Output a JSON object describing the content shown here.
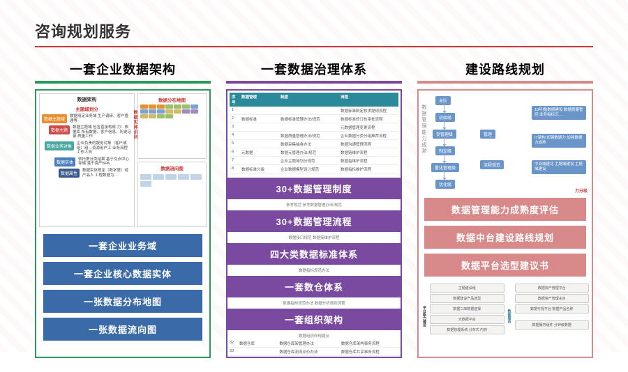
{
  "title": "咨询规划服务",
  "palette": {
    "accent_red": "#c63a3a",
    "col1": "#2a9a5a",
    "col1_bar": "#3a6aa8",
    "col2": "#7a4aa0",
    "col2_teal": "#2a8a9a",
    "col3": "#d88a8a",
    "col3_chip": "#6a95c8"
  },
  "columns": [
    {
      "heading": "一套企业数据架构",
      "diagram": {
        "title": "数据架构",
        "left_sub": "主题域划分",
        "nodes": [
          {
            "label": "数据主题域",
            "color": "#e98f2e",
            "desc": "数据用定业务域\n生产调研、客户管理等"
          },
          {
            "label": "数据主题",
            "color": "#d14a4a",
            "desc": "数据主题域 包含直接构成\n力：依据库 所有数据、客户信息、历史记录 质量工作"
          },
          {
            "label": "数据业务对象",
            "color": "#4aa7a0",
            "desc": "企业负责的服务对象（客户或组）组…资源用户工 业务流程 工作人员"
          },
          {
            "label": "数据实体",
            "color": "#4a7fbf",
            "desc": "依托携分类结果 基于交点中心存储 落干资产BPA"
          },
          {
            "label": "数据属性",
            "color": "#3a5a8a",
            "desc": "数据实体规定（数学里）经产品人 工程数据为…"
          }
        ],
        "right1_title": "数据分布地图",
        "right2_title": "数据流向图",
        "side_label": "数据实体识别"
      },
      "bars": [
        "一套企业业务域",
        "一套企业核心数据实体",
        "一张数据分布地图",
        "一张数据流向图"
      ]
    },
    {
      "heading": "一套数据治理体系",
      "table_head": [
        "序号",
        "数据管理",
        "制度",
        "流程"
      ],
      "rows": [
        [
          "1",
          "",
          "",
          "数据标准制定核求提规流程"
        ],
        [
          "2",
          "数据标准",
          "数据标准管理办法/规范",
          "数据标准修订核审批流程"
        ],
        [
          "3",
          "",
          "",
          "元数据管理变更流程"
        ],
        [
          "4",
          "",
          "数据质量管理办法/规范",
          "企业数据分类分级推荐流程"
        ],
        [
          "5",
          "",
          "数据采集抽身办法",
          "数据沟通管理流程"
        ],
        [
          "6",
          "元数据",
          "数据元管理办法/规范",
          "数据链维护流程"
        ],
        [
          "7",
          "",
          "企业主题域划分规范",
          "数据指维护流程"
        ],
        [
          "8",
          "数据标准分级",
          "企业数据模型设计规范",
          "数据指标维护流程"
        ]
      ],
      "bars": [
        "30+数据管理制度",
        "30+数据管理流程",
        "四大类数据标准体系",
        "一套数仓体系",
        "一套组织架构"
      ],
      "minis": [
        "参考规范 参考数据管理办法/规范",
        "数据接口规范 数据接维护流程",
        "数据指标规范办法",
        "数据指标规范办法 数据分析规则流程",
        "数据组织向规建议"
      ],
      "tail_rows": [
        [
          "32",
          "数据仓库",
          "数据仓库架管理办法",
          "数据仓库架构事务流程"
        ],
        [
          "33",
          "",
          "数据仓库测流评价办法",
          "数据仓库共享事务流程"
        ],
        [
          "34",
          "数据评价",
          "数据运营统计评价办法",
          ""
        ],
        [
          "35",
          "组织…",
          "数据管理组织评价办法",
          "数据策发现流程"
        ]
      ]
    },
    {
      "heading": "建设路线规划",
      "flow": {
        "vlabel": "数据管理能力成熟",
        "chips_left": [
          "未队",
          "初始级",
          "受管理级",
          "制定级",
          "量化管理级",
          "优化级"
        ],
        "chips_right_big": [
          "10年度j数据建设\n数据质量管控\n业务指标沉…",
          "IT架构\n加强数据力\n加强数据力成熟",
          "中间域建北\n主题域建设\n主题域建设"
        ],
        "bottom_label": "力分级"
      },
      "bars": [
        "数据管理能力成熟度评估",
        "数据中台建设路线规划",
        "数据平台选型建议书"
      ],
      "bottom": {
        "v1": "平台能力建设",
        "v2": "数据服务",
        "rows_l": [
          "主题建设组",
          "数据建设产品选型",
          "数据三库数据选择",
          "大数据平台",
          "数据管理系统 分布式 内存"
        ],
        "rows_r": [
          "数据资产管理平台",
          "数据资产管理主台",
          "数据可视平台  数据产品名称",
          "",
          "数据服务组件 分钟级数据"
        ]
      }
    }
  ]
}
